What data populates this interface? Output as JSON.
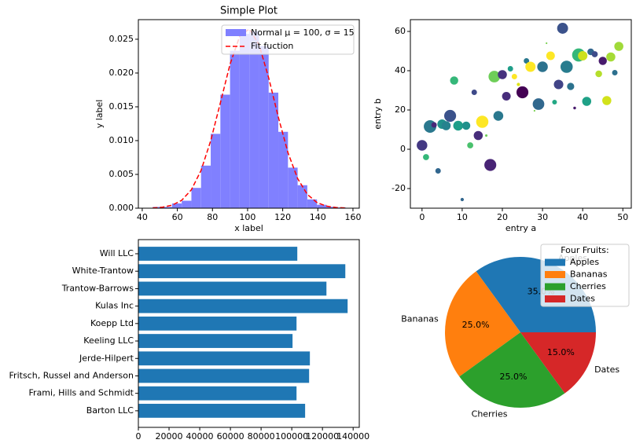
{
  "chart_data": [
    {
      "type": "histogram",
      "title": "Simple Plot",
      "x_label": "x label",
      "y_label": "y label",
      "name": "Normal μ = 100, σ = 15",
      "color": "#8080ff",
      "bins": [
        46,
        51.5,
        57,
        62.5,
        68,
        73.5,
        79,
        84.5,
        90,
        95.5,
        101,
        106.5,
        112,
        117.5,
        123,
        128.5,
        134,
        139.5,
        145,
        150.5,
        156
      ],
      "values": [
        0.00018,
        0.00018,
        0.0007,
        0.0011,
        0.003,
        0.0063,
        0.011,
        0.0168,
        0.0233,
        0.0258,
        0.0262,
        0.024,
        0.0171,
        0.0113,
        0.006,
        0.0034,
        0.0013,
        0.0005,
        0.0002,
        0.0001
      ],
      "fit": {
        "name": "Fit fuction",
        "color": "#ff0000",
        "x": [
          46,
          51.5,
          57,
          62.5,
          68,
          73.5,
          79,
          84.5,
          90,
          95.5,
          101,
          106.5,
          112,
          117.5,
          123,
          128.5,
          134,
          139.5,
          145,
          150.5,
          156
        ],
        "values": [
          4e-05,
          0.00014,
          0.00044,
          0.00117,
          0.00273,
          0.00559,
          0.00998,
          0.01559,
          0.0213,
          0.02543,
          0.02654,
          0.02421,
          0.01931,
          0.01347,
          0.00821,
          0.00438,
          0.00204,
          0.00083,
          0.0003,
          9e-05,
          3e-05
        ]
      },
      "xlim": [
        37.8,
        163.6
      ],
      "xticks": [
        40,
        60,
        80,
        100,
        120,
        140,
        160
      ],
      "ylim": [
        0,
        0.0279
      ],
      "yticks": [
        {
          "value": 0,
          "label": "0.000"
        },
        {
          "value": 0.005,
          "label": "0.005"
        },
        {
          "value": 0.01,
          "label": "0.010"
        },
        {
          "value": 0.015,
          "label": "0.015"
        },
        {
          "value": 0.02,
          "label": "0.020"
        },
        {
          "value": 0.025,
          "label": "0.025"
        }
      ],
      "legend": "upper right"
    },
    {
      "type": "scatter",
      "x_label": "entry a",
      "y_label": "entry b",
      "x": [
        0,
        1,
        2,
        3,
        4,
        5,
        6,
        7,
        8,
        9,
        10,
        11,
        12,
        13,
        14,
        15,
        16,
        17,
        18,
        19,
        20,
        21,
        22,
        23,
        24,
        25,
        26,
        27,
        28,
        29,
        30,
        31,
        32,
        33,
        34,
        35,
        36,
        37,
        38,
        39,
        40,
        41,
        42,
        43,
        44,
        45,
        46,
        47,
        48,
        49
      ],
      "values": [
        2,
        -4,
        11.6,
        12.4,
        -11,
        12.8,
        12,
        17,
        35,
        12,
        -25.6,
        12,
        2,
        29,
        7,
        14,
        7,
        -8,
        37,
        17,
        38,
        27,
        41,
        37,
        33,
        29,
        45,
        42,
        19.6,
        23,
        42,
        54,
        47.6,
        24,
        33,
        61.6,
        42,
        32,
        21,
        48,
        47.6,
        24.4,
        49.6,
        48.4,
        38.4,
        45,
        24.8,
        47,
        39,
        52.4
      ],
      "sizes": [
        150,
        50,
        210,
        40,
        40,
        120,
        110,
        190,
        90,
        130,
        15,
        90,
        50,
        40,
        110,
        200,
        8,
        190,
        180,
        130,
        110,
        100,
        40,
        40,
        15,
        190,
        40,
        140,
        4,
        180,
        150,
        4,
        100,
        30,
        120,
        160,
        200,
        70,
        10,
        230,
        120,
        110,
        60,
        50,
        60,
        90,
        110,
        110,
        40,
        110
      ],
      "colors": [
        "#443983",
        "#35b779",
        "#2a788e",
        "#482878",
        "#31668e",
        "#21918c",
        "#26828e",
        "#3b528b",
        "#35b779",
        "#1f9e89",
        "#31668e",
        "#21918c",
        "#4ac16d",
        "#3e4a89",
        "#472d7b",
        "#fde725",
        "#6ece58",
        "#482475",
        "#6ece58",
        "#2a788e",
        "#46327e",
        "#472d7b",
        "#1f9e89",
        "#fde725",
        "#dde318",
        "#440154",
        "#2a788e",
        "#fde725",
        "#7ad151",
        "#31688e",
        "#2c728e",
        "#7ad151",
        "#fde725",
        "#22a884",
        "#414487",
        "#3b528b",
        "#287c8e",
        "#2c728e",
        "#481a6c",
        "#35b779",
        "#cde11d",
        "#1fa187",
        "#31668e",
        "#3e4c8a",
        "#b5de2b",
        "#481b6d",
        "#d2e21b",
        "#a5db36",
        "#2d708e",
        "#a0da39"
      ],
      "xlim": [
        -2.9,
        52.1
      ],
      "xticks": [
        0,
        10,
        20,
        30,
        40,
        50
      ],
      "ylim": [
        -30,
        66
      ],
      "yticks": [
        -20,
        0,
        20,
        40,
        60
      ]
    },
    {
      "type": "bar",
      "orientation": "horizontal",
      "color": "#1f77b4",
      "categories": [
        "Barton LLC",
        "Frami, Hills and Schmidt",
        "Fritsch, Russel and Anderson",
        "Jerde-Hilpert",
        "Keeling LLC",
        "Koepp Ltd",
        "Kulas Inc",
        "Trantow-Barrows",
        "White-Trantow",
        "Will LLC"
      ],
      "values": [
        108700,
        103100,
        111300,
        111800,
        100500,
        103100,
        136400,
        122600,
        134900,
        103600
      ],
      "xlim": [
        0,
        144000
      ],
      "xticks": [
        0,
        20000,
        40000,
        60000,
        80000,
        100000,
        120000,
        140000
      ]
    },
    {
      "type": "pie",
      "legend_title": "Four Fruits:",
      "legend": "upper right",
      "categories": [
        "Apples",
        "Bananas",
        "Cherries",
        "Dates"
      ],
      "values": [
        35,
        25,
        25,
        15
      ],
      "value_labels": [
        "35.0%",
        "25.0%",
        "25.0%",
        "15.0%"
      ],
      "colors": [
        "#1f77b4",
        "#ff7f0e",
        "#2ca02c",
        "#d62728"
      ]
    }
  ]
}
